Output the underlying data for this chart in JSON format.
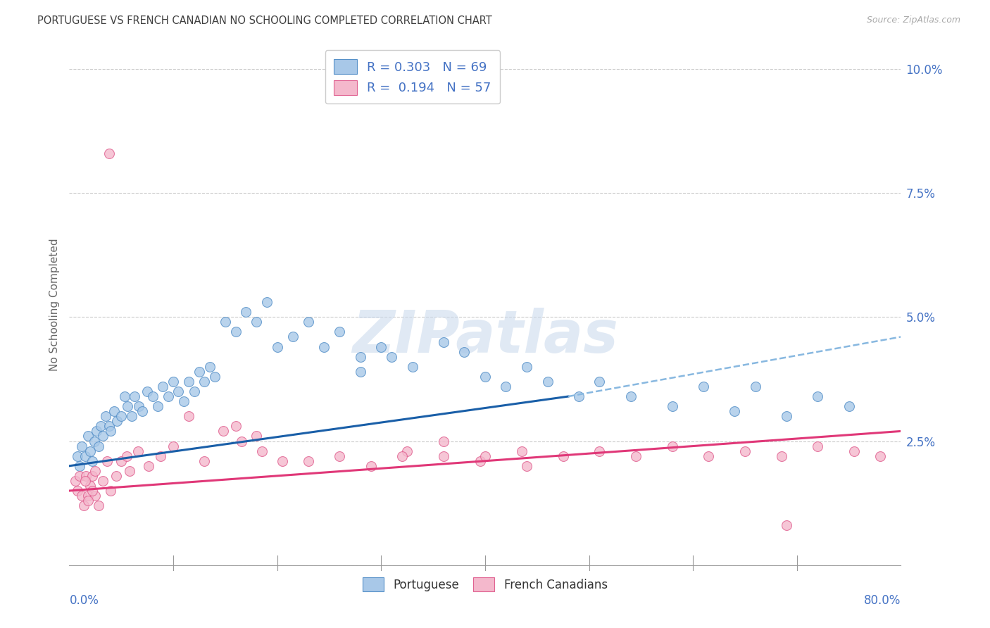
{
  "title": "PORTUGUESE VS FRENCH CANADIAN NO SCHOOLING COMPLETED CORRELATION CHART",
  "source": "Source: ZipAtlas.com",
  "ylabel": "No Schooling Completed",
  "blue_fill": "#a8c8e8",
  "blue_edge": "#5590c8",
  "pink_fill": "#f4b8cc",
  "pink_edge": "#e06090",
  "blue_line_color": "#1a5fa8",
  "pink_line_color": "#e03878",
  "dashed_line_color": "#88b8e0",
  "axis_label_color": "#4472c4",
  "title_color": "#404040",
  "legend_text_color": "#4472c4",
  "watermark_color": "#c8d8ec",
  "watermark_text": "ZIPatlas",
  "R_blue": 0.303,
  "N_blue": 69,
  "R_pink": 0.194,
  "N_pink": 57,
  "xlim": [
    0,
    0.8
  ],
  "ylim": [
    0,
    0.105
  ],
  "yticks": [
    0.0,
    0.025,
    0.05,
    0.075,
    0.1
  ],
  "ytick_labels": [
    "",
    "2.5%",
    "5.0%",
    "7.5%",
    "10.0%"
  ],
  "portuguese_x": [
    0.008,
    0.01,
    0.012,
    0.015,
    0.018,
    0.02,
    0.022,
    0.024,
    0.026,
    0.028,
    0.03,
    0.032,
    0.035,
    0.038,
    0.04,
    0.043,
    0.046,
    0.05,
    0.053,
    0.056,
    0.06,
    0.063,
    0.067,
    0.07,
    0.075,
    0.08,
    0.085,
    0.09,
    0.095,
    0.1,
    0.105,
    0.11,
    0.115,
    0.12,
    0.125,
    0.13,
    0.135,
    0.14,
    0.15,
    0.16,
    0.17,
    0.18,
    0.19,
    0.2,
    0.215,
    0.23,
    0.245,
    0.26,
    0.28,
    0.3,
    0.28,
    0.31,
    0.33,
    0.36,
    0.38,
    0.4,
    0.42,
    0.44,
    0.46,
    0.49,
    0.51,
    0.54,
    0.58,
    0.61,
    0.64,
    0.66,
    0.69,
    0.72,
    0.75
  ],
  "portuguese_y": [
    0.022,
    0.02,
    0.024,
    0.022,
    0.026,
    0.023,
    0.021,
    0.025,
    0.027,
    0.024,
    0.028,
    0.026,
    0.03,
    0.028,
    0.027,
    0.031,
    0.029,
    0.03,
    0.034,
    0.032,
    0.03,
    0.034,
    0.032,
    0.031,
    0.035,
    0.034,
    0.032,
    0.036,
    0.034,
    0.037,
    0.035,
    0.033,
    0.037,
    0.035,
    0.039,
    0.037,
    0.04,
    0.038,
    0.049,
    0.047,
    0.051,
    0.049,
    0.053,
    0.044,
    0.046,
    0.049,
    0.044,
    0.047,
    0.042,
    0.044,
    0.039,
    0.042,
    0.04,
    0.045,
    0.043,
    0.038,
    0.036,
    0.04,
    0.037,
    0.034,
    0.037,
    0.034,
    0.032,
    0.036,
    0.031,
    0.036,
    0.03,
    0.034,
    0.032
  ],
  "french_x": [
    0.006,
    0.008,
    0.01,
    0.012,
    0.014,
    0.016,
    0.018,
    0.02,
    0.022,
    0.025,
    0.028,
    0.032,
    0.036,
    0.04,
    0.045,
    0.05,
    0.058,
    0.066,
    0.076,
    0.088,
    0.1,
    0.115,
    0.13,
    0.148,
    0.166,
    0.185,
    0.205,
    0.23,
    0.26,
    0.29,
    0.325,
    0.36,
    0.395,
    0.435,
    0.475,
    0.51,
    0.545,
    0.58,
    0.615,
    0.65,
    0.685,
    0.72,
    0.755,
    0.78,
    0.32,
    0.36,
    0.4,
    0.44,
    0.16,
    0.18,
    0.015,
    0.018,
    0.022,
    0.025,
    0.038,
    0.055,
    0.69
  ],
  "french_y": [
    0.017,
    0.015,
    0.018,
    0.014,
    0.012,
    0.018,
    0.014,
    0.016,
    0.018,
    0.014,
    0.012,
    0.017,
    0.021,
    0.015,
    0.018,
    0.021,
    0.019,
    0.023,
    0.02,
    0.022,
    0.024,
    0.03,
    0.021,
    0.027,
    0.025,
    0.023,
    0.021,
    0.021,
    0.022,
    0.02,
    0.023,
    0.022,
    0.021,
    0.023,
    0.022,
    0.023,
    0.022,
    0.024,
    0.022,
    0.023,
    0.022,
    0.024,
    0.023,
    0.022,
    0.022,
    0.025,
    0.022,
    0.02,
    0.028,
    0.026,
    0.017,
    0.013,
    0.015,
    0.019,
    0.083,
    0.022,
    0.008
  ],
  "blue_trend": [
    0.0,
    0.48,
    0.02,
    0.034
  ],
  "pink_trend": [
    0.0,
    0.8,
    0.015,
    0.027
  ],
  "dashed_trend": [
    0.48,
    0.8,
    0.034,
    0.046
  ]
}
